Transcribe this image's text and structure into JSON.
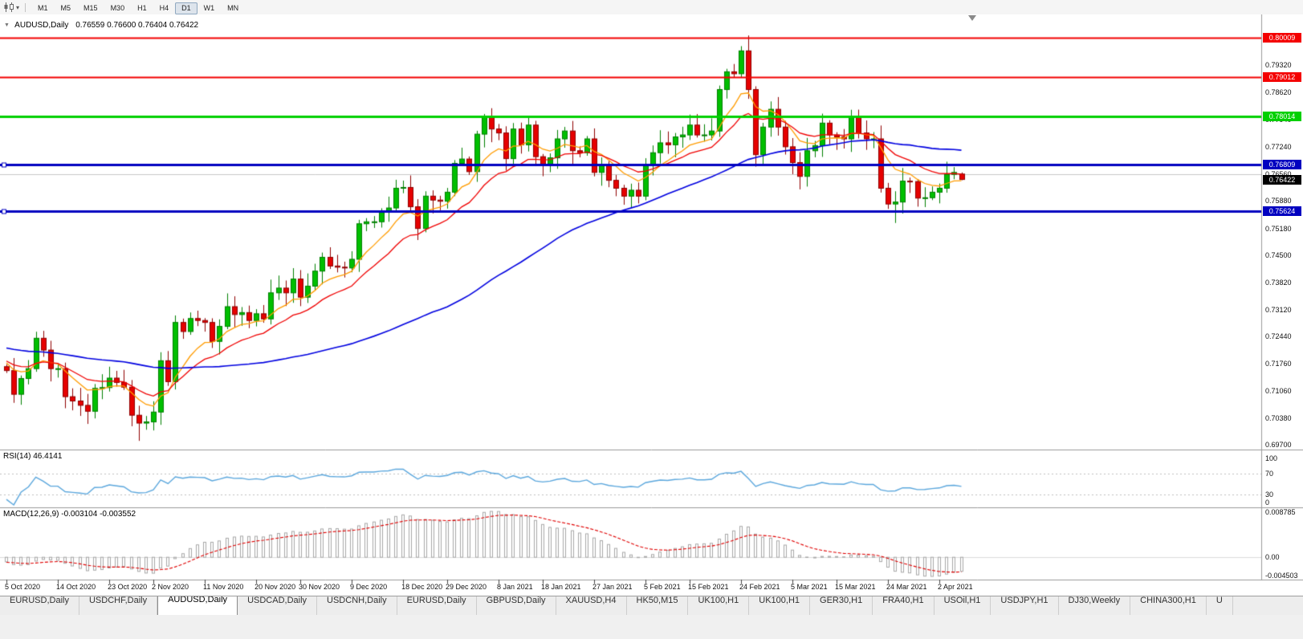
{
  "toolbar": {
    "timeframes": [
      "M1",
      "M5",
      "M15",
      "M30",
      "H1",
      "H4",
      "D1",
      "W1",
      "MN"
    ],
    "active_timeframe": "D1"
  },
  "chart": {
    "header": {
      "symbol": "AUDUSD,Daily",
      "ohlc": "0.76559 0.76600 0.76404 0.76422"
    },
    "price_axis": {
      "top_price": 0.8046,
      "bottom_price": 0.6958,
      "regular_labels": [
        "0.79320",
        "0.78620",
        "0.77940",
        "0.77240",
        "0.76560",
        "0.75880",
        "0.75180",
        "0.74500",
        "0.73820",
        "0.73120",
        "0.72440",
        "0.71760",
        "0.71060",
        "0.70380",
        "0.69700"
      ]
    },
    "levels": [
      {
        "price": 0.80009,
        "label": "0.80009",
        "color": "#f40000",
        "width": 2,
        "handle": false
      },
      {
        "price": 0.79012,
        "label": "0.79012",
        "color": "#f40000",
        "width": 2,
        "handle": false
      },
      {
        "price": 0.78014,
        "label": "0.78014",
        "color": "#00d000",
        "width": 3,
        "handle": false
      },
      {
        "price": 0.76809,
        "label": "0.76809",
        "color": "#0000c0",
        "width": 3,
        "handle": true
      },
      {
        "price": 0.75624,
        "label": "0.75624",
        "color": "#0000c0",
        "width": 3,
        "handle": true
      }
    ],
    "current_price": {
      "price": 0.76422,
      "label": "0.76422",
      "bg": "#000000"
    },
    "grid_line_price": 0.7656,
    "colors": {
      "bull": "#00bf00",
      "bull_border": "#007f00",
      "bear": "#e60000",
      "bear_border": "#8f0000",
      "ma_fast": "#ff9c00",
      "ma_mid": "#f00000",
      "ma_slow": "#0000e0"
    }
  },
  "rsi": {
    "header": "RSI(14) 46.4141",
    "axis_labels": [
      "100",
      "70",
      "30",
      "0"
    ],
    "dashed_levels": [
      70,
      30
    ],
    "color": "#5ba7dd"
  },
  "macd": {
    "header": "MACD(12,26,9) -0.003104 -0.003552",
    "axis_labels": [
      "0.008785",
      "0.00",
      "-0.004503"
    ],
    "hist_color": "#a8a8a8",
    "signal_color": "#e00000"
  },
  "chart_data": {
    "type": "candlestick",
    "symbol": "AUDUSD",
    "period": "Daily",
    "visible_range": "5 Oct 2020 - 7 Apr 2021",
    "closes": [
      0.7158,
      0.7098,
      0.7138,
      0.7163,
      0.724,
      0.721,
      0.7163,
      0.7163,
      0.7092,
      0.7081,
      0.707,
      0.7055,
      0.7113,
      0.7115,
      0.7139,
      0.7128,
      0.7116,
      0.7045,
      0.7025,
      0.7028,
      0.7053,
      0.7183,
      0.713,
      0.728,
      0.7257,
      0.729,
      0.7285,
      0.728,
      0.7232,
      0.727,
      0.732,
      0.73,
      0.7305,
      0.7285,
      0.7302,
      0.7289,
      0.7355,
      0.7367,
      0.7355,
      0.739,
      0.7344,
      0.7372,
      0.741,
      0.7445,
      0.7423,
      0.742,
      0.7418,
      0.744,
      0.753,
      0.7535,
      0.7535,
      0.756,
      0.757,
      0.762,
      0.7622,
      0.7573,
      0.7518,
      0.76,
      0.759,
      0.7587,
      0.761,
      0.7683,
      0.7694,
      0.7662,
      0.7757,
      0.78,
      0.777,
      0.776,
      0.7695,
      0.777,
      0.773,
      0.778,
      0.77,
      0.768,
      0.7697,
      0.7745,
      0.7765,
      0.7715,
      0.771,
      0.7745,
      0.766,
      0.768,
      0.764,
      0.762,
      0.76,
      0.7615,
      0.76,
      0.768,
      0.771,
      0.7735,
      0.773,
      0.775,
      0.7755,
      0.778,
      0.7755,
      0.7755,
      0.7765,
      0.787,
      0.7915,
      0.791,
      0.7968,
      0.787,
      0.7705,
      0.7775,
      0.782,
      0.7775,
      0.7725,
      0.7685,
      0.765,
      0.7715,
      0.7728,
      0.7785,
      0.7755,
      0.775,
      0.7745,
      0.78,
      0.776,
      0.7745,
      0.7745,
      0.762,
      0.758,
      0.7585,
      0.7638,
      0.7637,
      0.7595,
      0.7596,
      0.761,
      0.762,
      0.7655,
      0.766,
      0.7642
    ],
    "wick_overrides": {
      "18": {
        "low": 0.698
      },
      "100": {
        "high": 0.798
      },
      "101": {
        "high": 0.8007
      },
      "121": {
        "low": 0.7532
      },
      "130": {
        "open": 0.76559,
        "high": 0.766,
        "low": 0.76404,
        "close": 0.76422
      }
    },
    "date_ticks": [
      {
        "label": "5 Oct 2020",
        "i": 0
      },
      {
        "label": "14 Oct 2020",
        "i": 7
      },
      {
        "label": "23 Oct 2020",
        "i": 14
      },
      {
        "label": "2 Nov 2020",
        "i": 20
      },
      {
        "label": "11 Nov 2020",
        "i": 27
      },
      {
        "label": "20 Nov 2020",
        "i": 34
      },
      {
        "label": "30 Nov 2020",
        "i": 40
      },
      {
        "label": "9 Dec 2020",
        "i": 47
      },
      {
        "label": "18 Dec 2020",
        "i": 54
      },
      {
        "label": "29 Dec 2020",
        "i": 60
      },
      {
        "label": "8 Jan 2021",
        "i": 67
      },
      {
        "label": "18 Jan 2021",
        "i": 73
      },
      {
        "label": "27 Jan 2021",
        "i": 80
      },
      {
        "label": "5 Feb 2021",
        "i": 87
      },
      {
        "label": "15 Feb 2021",
        "i": 93
      },
      {
        "label": "24 Feb 2021",
        "i": 100
      },
      {
        "label": "5 Mar 2021",
        "i": 107
      },
      {
        "label": "15 Mar 2021",
        "i": 113
      },
      {
        "label": "24 Mar 2021",
        "i": 120
      },
      {
        "label": "2 Apr 2021",
        "i": 127
      }
    ]
  },
  "tabs": {
    "active_index": 2,
    "items": [
      "EURUSD,Daily",
      "USDCHF,Daily",
      "AUDUSD,Daily",
      "USDCAD,Daily",
      "USDCNH,Daily",
      "EURUSD,Daily",
      "GBPUSD,Daily",
      "XAUUSD,H4",
      "HK50,M15",
      "UK100,H1",
      "UK100,H1",
      "GER30,H1",
      "FRA40,H1",
      "USOil,H1",
      "USDJPY,H1",
      "DJ30,Weekly",
      "CHINA300,H1",
      "U"
    ]
  }
}
